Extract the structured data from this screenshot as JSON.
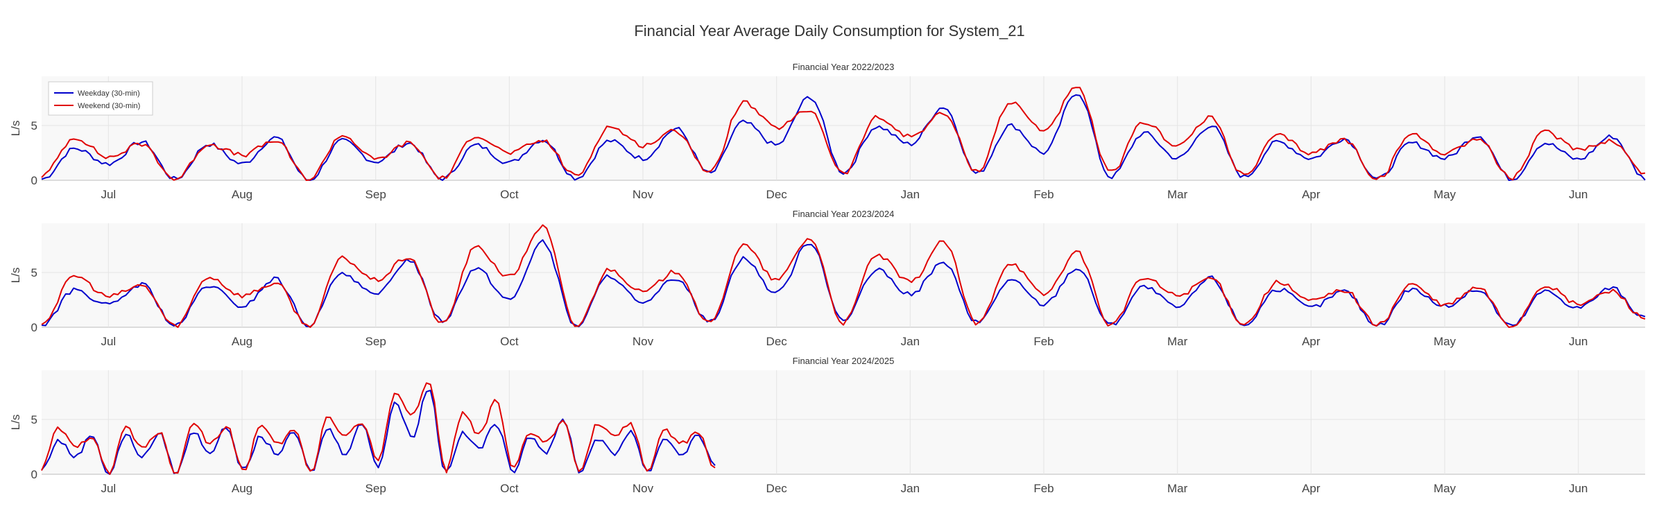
{
  "title": "Financial Year Average Daily Consumption for System_21",
  "colors": {
    "weekday": "#0000cc",
    "weekend": "#e00000",
    "grid": "#e4e4e4",
    "plot_bg": "#f8f8f8"
  },
  "chart_data": [
    {
      "type": "line",
      "title": "Financial Year 2022/2023",
      "ylabel": "L/s",
      "ylim": [
        0,
        9.5
      ],
      "yticks": [
        0,
        5
      ],
      "xticks": [
        "Jul",
        "Aug",
        "Sep",
        "Oct",
        "Nov",
        "Dec",
        "Jan",
        "Feb",
        "Mar",
        "Apr",
        "May",
        "Jun"
      ],
      "legend": [
        "Weekday (30-min)",
        "Weekend (30-min)"
      ],
      "legend_position": "top-left",
      "grid": true,
      "series": [
        {
          "name": "Weekday (30-min)",
          "peaks": [
            2.9,
            3.5,
            3.3,
            3.9,
            3.6,
            3.4,
            3.2,
            3.7,
            3.6,
            4.7,
            5.3,
            7.6,
            4.9,
            6.7,
            5.0,
            8.0,
            4.3,
            5.0,
            3.5,
            3.8,
            3.4,
            4.1,
            3.4,
            4.0
          ],
          "troughs": [
            0.1,
            1.5,
            0.1,
            1.5,
            0.0,
            1.7,
            0.1,
            1.6,
            0.2,
            2.0,
            0.6,
            3.2,
            0.7,
            3.3,
            0.6,
            2.5,
            0.3,
            2.0,
            0.3,
            2.0,
            0.1,
            2.0,
            0.1,
            1.9,
            0.2
          ],
          "end_fraction": 1.0
        },
        {
          "name": "Weekend (30-min)",
          "peaks": [
            3.9,
            3.3,
            3.3,
            3.6,
            4.1,
            3.4,
            4.1,
            3.6,
            4.9,
            4.5,
            7.1,
            6.4,
            5.7,
            6.1,
            7.1,
            8.4,
            5.3,
            5.7,
            4.1,
            3.7,
            4.2,
            3.8,
            4.4,
            3.6
          ],
          "troughs": [
            0.4,
            2.1,
            0.1,
            2.3,
            0.1,
            1.9,
            0.2,
            2.5,
            0.4,
            3.2,
            0.7,
            4.8,
            0.6,
            4.0,
            0.8,
            4.6,
            0.7,
            3.2,
            0.4,
            2.5,
            0.1,
            2.5,
            0.2,
            2.9,
            0.6
          ],
          "end_fraction": 1.0
        }
      ]
    },
    {
      "type": "line",
      "title": "Financial Year 2023/2024",
      "ylabel": "L/s",
      "ylim": [
        0,
        9.5
      ],
      "yticks": [
        0,
        5
      ],
      "xticks": [
        "Jul",
        "Aug",
        "Sep",
        "Oct",
        "Nov",
        "Dec",
        "Jan",
        "Feb",
        "Mar",
        "Apr",
        "May",
        "Jun"
      ],
      "series": [
        {
          "name": "Weekday (30-min)",
          "peaks": [
            3.4,
            3.9,
            3.8,
            4.4,
            5.0,
            6.2,
            5.4,
            7.8,
            4.7,
            4.5,
            6.3,
            7.8,
            5.2,
            5.9,
            4.3,
            5.4,
            3.7,
            4.5,
            3.5,
            3.3,
            3.5,
            3.4,
            3.3,
            3.6
          ],
          "troughs": [
            0.2,
            2.0,
            0.1,
            1.9,
            0.2,
            2.9,
            0.6,
            2.5,
            0.1,
            2.1,
            0.5,
            3.1,
            0.6,
            3.0,
            0.4,
            2.1,
            0.2,
            1.8,
            0.2,
            1.8,
            0.1,
            1.9,
            0.1,
            1.8,
            0.8
          ],
          "end_fraction": 1.0
        },
        {
          "name": "Weekend (30-min)",
          "peaks": [
            4.7,
            3.8,
            4.6,
            4.0,
            6.3,
            6.4,
            7.3,
            9.2,
            5.3,
            5.1,
            7.5,
            8.1,
            6.6,
            7.8,
            5.9,
            6.8,
            4.5,
            4.5,
            4.1,
            3.4,
            3.9,
            3.6,
            3.8,
            3.3
          ],
          "troughs": [
            0.4,
            2.8,
            0.1,
            2.9,
            0.1,
            4.3,
            0.3,
            4.6,
            0.1,
            3.2,
            0.3,
            4.3,
            0.4,
            4.1,
            0.3,
            3.0,
            0.2,
            2.9,
            0.3,
            2.4,
            0.2,
            2.0,
            0.1,
            2.1,
            0.8
          ],
          "end_fraction": 1.0
        }
      ]
    },
    {
      "type": "line",
      "title": "Financial Year 2024/2025",
      "ylabel": "L/s",
      "ylim": [
        0,
        9.5
      ],
      "yticks": [
        0,
        5
      ],
      "xticks": [
        "Jul",
        "Aug",
        "Sep",
        "Oct",
        "Nov",
        "Dec",
        "Jan",
        "Feb",
        "Mar",
        "Apr",
        "May",
        "Jun"
      ],
      "series": [
        {
          "name": "Weekday (30-min)",
          "peaks": [
            3.1,
            3.6,
            3.6,
            3.7,
            3.9,
            4.3,
            3.4,
            3.8,
            4.2,
            4.6,
            6.6,
            7.9,
            3.7,
            4.6,
            3.5,
            5.0,
            3.3,
            4.0,
            3.3,
            3.6
          ],
          "troughs": [
            0.4,
            1.6,
            0.0,
            1.6,
            0.1,
            2.0,
            0.3,
            1.9,
            0.2,
            1.9,
            0.8,
            3.4,
            0.2,
            2.4,
            0.3,
            2.0,
            0.2,
            1.8,
            0.2,
            1.8,
            0.6
          ],
          "end_fraction": 0.42
        },
        {
          "name": "Weekend (30-min)",
          "peaks": [
            4.2,
            3.5,
            4.3,
            3.9,
            4.8,
            4.3,
            4.4,
            4.0,
            5.3,
            4.7,
            7.6,
            8.6,
            5.6,
            6.7,
            3.8,
            4.9,
            4.6,
            4.6,
            4.1,
            3.7
          ],
          "troughs": [
            0.5,
            2.4,
            0.1,
            2.3,
            0.0,
            2.8,
            0.3,
            2.7,
            0.2,
            3.5,
            1.2,
            5.3,
            0.3,
            3.6,
            0.4,
            2.9,
            0.3,
            3.4,
            0.3,
            2.8,
            0.6
          ],
          "end_fraction": 0.42
        }
      ]
    }
  ]
}
